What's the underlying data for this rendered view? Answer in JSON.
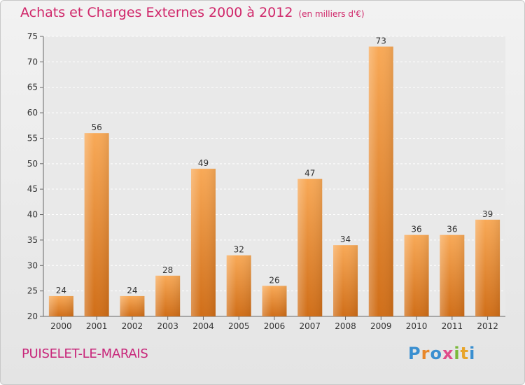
{
  "title": "Achats et Charges Externes 2000 à 2012",
  "unit_note": "(en milliers d'€)",
  "commune": "PUISELET-LE-MARAIS",
  "logo": "Proxiti",
  "colors": {
    "title": "#d0276a",
    "bar_top": "#f8a957",
    "bar_bottom": "#d06e18",
    "axis_text": "#333333"
  },
  "chart_data": {
    "type": "bar",
    "title": "Achats et Charges Externes 2000 à 2012",
    "subtitle": "(en milliers d'€)",
    "categories": [
      "2000",
      "2001",
      "2002",
      "2003",
      "2004",
      "2005",
      "2006",
      "2007",
      "2008",
      "2009",
      "2010",
      "2011",
      "2012"
    ],
    "values": [
      24,
      56,
      24,
      28,
      49,
      32,
      26,
      47,
      34,
      73,
      36,
      36,
      39
    ],
    "ylim": [
      20,
      75
    ],
    "yticks": [
      20,
      25,
      30,
      35,
      40,
      45,
      50,
      55,
      60,
      65,
      70,
      75
    ],
    "grid": true,
    "data_labels": true
  }
}
